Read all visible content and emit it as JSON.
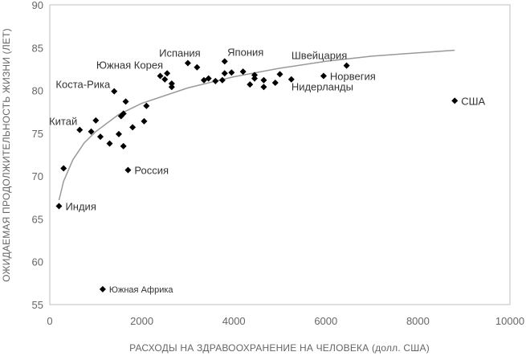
{
  "chart_data": {
    "type": "scatter",
    "title": "",
    "xlabel": "РАСХОДЫ НА ЗДРАВООХРАНЕНИЕ НА ЧЕЛОВЕКА (долл. США)",
    "ylabel": "ОЖИДАЕМАЯ ПРОДОЛЖИТЕЛЬНОСТЬ ЖИЗНИ (ЛЕТ)",
    "xlim": [
      0,
      10000
    ],
    "ylim": [
      55,
      90
    ],
    "xticks": [
      0,
      2000,
      4000,
      6000,
      8000,
      10000
    ],
    "yticks": [
      55,
      60,
      65,
      70,
      75,
      80,
      85,
      90
    ],
    "grid": false,
    "marker": "diamond",
    "marker_color": "#000000",
    "trendline": {
      "type": "logarithmic",
      "color": "#999999",
      "points": [
        [
          200,
          67.2
        ],
        [
          300,
          69.4
        ],
        [
          500,
          71.9
        ],
        [
          750,
          73.9
        ],
        [
          1000,
          75.2
        ],
        [
          1500,
          77.2
        ],
        [
          2000,
          78.5
        ],
        [
          3000,
          80.3
        ],
        [
          4000,
          81.6
        ],
        [
          5000,
          82.6
        ],
        [
          6000,
          83.4
        ],
        [
          7000,
          84.0
        ],
        [
          8000,
          84.4
        ],
        [
          8800,
          84.7
        ]
      ]
    },
    "points": [
      {
        "x": 200,
        "y": 66.5,
        "label": "Индия"
      },
      {
        "x": 300,
        "y": 70.9
      },
      {
        "x": 650,
        "y": 75.4,
        "label": "Китай"
      },
      {
        "x": 900,
        "y": 75.2
      },
      {
        "x": 1000,
        "y": 76.5
      },
      {
        "x": 1100,
        "y": 74.6
      },
      {
        "x": 1150,
        "y": 56.8,
        "label": "Южная Африка"
      },
      {
        "x": 1300,
        "y": 73.8
      },
      {
        "x": 1400,
        "y": 79.9,
        "label": "Коста-Рика"
      },
      {
        "x": 1500,
        "y": 74.9
      },
      {
        "x": 1550,
        "y": 77.0
      },
      {
        "x": 1600,
        "y": 77.3
      },
      {
        "x": 1600,
        "y": 73.5
      },
      {
        "x": 1650,
        "y": 78.7
      },
      {
        "x": 1700,
        "y": 70.7,
        "label": "Россия"
      },
      {
        "x": 1800,
        "y": 75.7
      },
      {
        "x": 2050,
        "y": 76.4
      },
      {
        "x": 2100,
        "y": 78.2
      },
      {
        "x": 2400,
        "y": 81.7
      },
      {
        "x": 2500,
        "y": 81.3
      },
      {
        "x": 2550,
        "y": 82.0,
        "label": "Южная Корея"
      },
      {
        "x": 2650,
        "y": 80.8
      },
      {
        "x": 2650,
        "y": 80.4
      },
      {
        "x": 3000,
        "y": 83.2,
        "label": "Испания"
      },
      {
        "x": 3200,
        "y": 82.7
      },
      {
        "x": 3350,
        "y": 81.2
      },
      {
        "x": 3450,
        "y": 81.4
      },
      {
        "x": 3600,
        "y": 81.1
      },
      {
        "x": 3750,
        "y": 81.2
      },
      {
        "x": 3800,
        "y": 83.4,
        "label": "Япония"
      },
      {
        "x": 3800,
        "y": 82.0
      },
      {
        "x": 3950,
        "y": 82.1
      },
      {
        "x": 4200,
        "y": 82.2
      },
      {
        "x": 4350,
        "y": 80.7
      },
      {
        "x": 4450,
        "y": 81.8
      },
      {
        "x": 4450,
        "y": 81.4
      },
      {
        "x": 4650,
        "y": 81.2
      },
      {
        "x": 4650,
        "y": 80.4
      },
      {
        "x": 4900,
        "y": 80.9
      },
      {
        "x": 5000,
        "y": 81.9
      },
      {
        "x": 5250,
        "y": 81.3,
        "label": "Нидерланды"
      },
      {
        "x": 5950,
        "y": 81.7,
        "label": "Норвегия"
      },
      {
        "x": 6450,
        "y": 82.9,
        "label": "Швейцария"
      },
      {
        "x": 8800,
        "y": 78.8,
        "label": "США"
      }
    ]
  }
}
